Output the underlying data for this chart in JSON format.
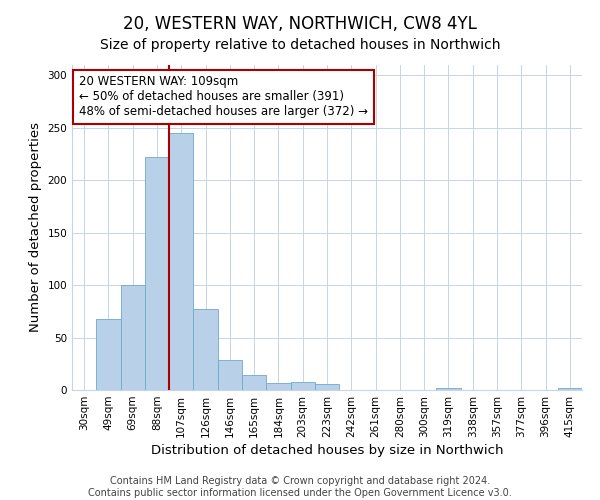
{
  "title": "20, WESTERN WAY, NORTHWICH, CW8 4YL",
  "subtitle": "Size of property relative to detached houses in Northwich",
  "xlabel": "Distribution of detached houses by size in Northwich",
  "ylabel": "Number of detached properties",
  "bin_labels": [
    "30sqm",
    "49sqm",
    "69sqm",
    "88sqm",
    "107sqm",
    "126sqm",
    "146sqm",
    "165sqm",
    "184sqm",
    "203sqm",
    "223sqm",
    "242sqm",
    "261sqm",
    "280sqm",
    "300sqm",
    "319sqm",
    "338sqm",
    "357sqm",
    "377sqm",
    "396sqm",
    "415sqm"
  ],
  "bar_heights": [
    0,
    68,
    100,
    222,
    245,
    77,
    29,
    14,
    7,
    8,
    6,
    0,
    0,
    0,
    0,
    2,
    0,
    0,
    0,
    0,
    2
  ],
  "bar_color": "#b8d0e8",
  "bar_edge_color": "#6fa8d0",
  "vline_x_index": 4,
  "vline_color": "#aa0000",
  "annotation_line1": "20 WESTERN WAY: 109sqm",
  "annotation_line2": "← 50% of detached houses are smaller (391)",
  "annotation_line3": "48% of semi-detached houses are larger (372) →",
  "annotation_box_edge_color": "#aa0000",
  "annotation_box_face_color": "#ffffff",
  "ylim": [
    0,
    310
  ],
  "yticks": [
    0,
    50,
    100,
    150,
    200,
    250,
    300
  ],
  "footer_line1": "Contains HM Land Registry data © Crown copyright and database right 2024.",
  "footer_line2": "Contains public sector information licensed under the Open Government Licence v3.0.",
  "background_color": "#ffffff",
  "grid_color": "#c8d4e4",
  "title_fontsize": 12,
  "subtitle_fontsize": 10,
  "axis_label_fontsize": 9.5,
  "tick_fontsize": 7.5,
  "annotation_fontsize": 8.5,
  "footer_fontsize": 7
}
